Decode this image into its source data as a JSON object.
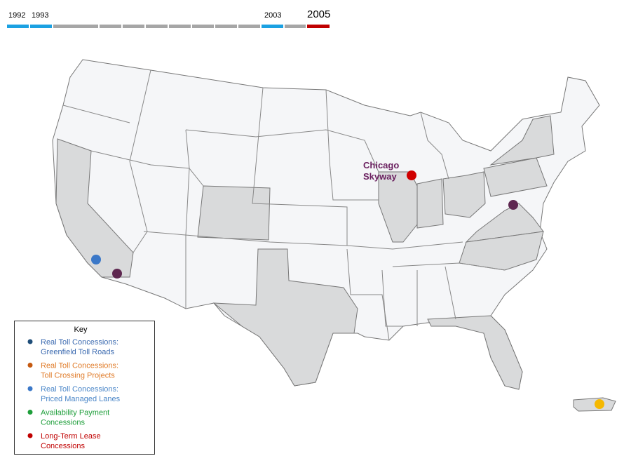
{
  "timeline": {
    "years": [
      "1992",
      "1993",
      "2003",
      "2005"
    ]
  },
  "map": {
    "labels": [
      "Chicago Skyway"
    ]
  },
  "key": {
    "title": "Key",
    "items": [
      {
        "lines": [
          "Real Toll Concessions:",
          "Greenfield Toll Roads"
        ],
        "color": "#3b6ab0",
        "dot": "#1f4e79"
      },
      {
        "lines": [
          "Real Toll Concessions:",
          "Toll Crossing Projects"
        ],
        "color": "#e07b28",
        "dot": "#c55a11"
      },
      {
        "lines": [
          "Real Toll Concessions:",
          "Priced Managed Lanes"
        ],
        "color": "#4a86c8",
        "dot": "#3b78c8"
      },
      {
        "lines": [
          "Availability Payment",
          "Concessions"
        ],
        "color": "#1e9e3a",
        "dot": "#1e9e3a"
      },
      {
        "lines": [
          "Long-Term Lease",
          "Concessions"
        ],
        "color": "#c00000",
        "dot": "#c00000"
      }
    ]
  }
}
